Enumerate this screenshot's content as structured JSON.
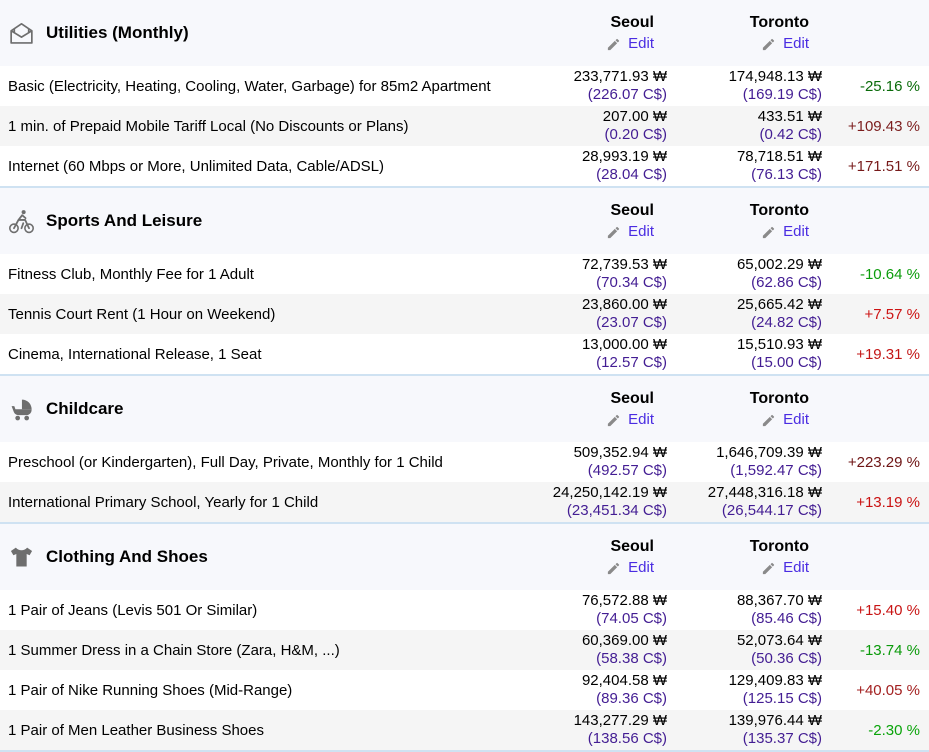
{
  "table": {
    "city1": "Seoul",
    "city2": "Toronto",
    "edit_label": "Edit",
    "edit_icon": "pencil-icon"
  },
  "colors": {
    "edit_link": "#4a2ce2",
    "converted_amount": "#431d93",
    "section_header_bg": "#f7f8fc",
    "row_alt_bg": "#f5f5f5",
    "section_divider": "#cfe2f2",
    "icon_gray": "#6e6e6e"
  },
  "sections": [
    {
      "title": "Utilities (Monthly)",
      "icon": "open-mail-icon",
      "rows": [
        {
          "label": "Basic (Electricity, Heating, Cooling, Water, Garbage) for 85m2 Apartment",
          "city1_value": "233,771.93 ₩",
          "city1_converted": "(226.07 C$)",
          "city2_value": "174,948.13 ₩",
          "city2_converted": "(169.19 C$)",
          "diff": "-25.16 %",
          "diff_color": "#0a6b0a"
        },
        {
          "label": "1 min. of Prepaid Mobile Tariff Local (No Discounts or Plans)",
          "city1_value": "207.00 ₩",
          "city1_converted": "(0.20 C$)",
          "city2_value": "433.51 ₩",
          "city2_converted": "(0.42 C$)",
          "diff": "+109.43 %",
          "diff_color": "#7c1d1d"
        },
        {
          "label": "Internet (60 Mbps or More, Unlimited Data, Cable/ADSL)",
          "city1_value": "28,993.19 ₩",
          "city1_converted": "(28.04 C$)",
          "city2_value": "78,718.51 ₩",
          "city2_converted": "(76.13 C$)",
          "diff": "+171.51 %",
          "diff_color": "#771a1a"
        }
      ]
    },
    {
      "title": "Sports And Leisure",
      "icon": "cyclist-icon",
      "rows": [
        {
          "label": "Fitness Club, Monthly Fee for 1 Adult",
          "city1_value": "72,739.53 ₩",
          "city1_converted": "(70.34 C$)",
          "city2_value": "65,002.29 ₩",
          "city2_converted": "(62.86 C$)",
          "diff": "-10.64 %",
          "diff_color": "#0c9c0c"
        },
        {
          "label": "Tennis Court Rent (1 Hour on Weekend)",
          "city1_value": "23,860.00 ₩",
          "city1_converted": "(23.07 C$)",
          "city2_value": "25,665.42 ₩",
          "city2_converted": "(24.82 C$)",
          "diff": "+7.57 %",
          "diff_color": "#cd1414"
        },
        {
          "label": "Cinema, International Release, 1 Seat",
          "city1_value": "13,000.00 ₩",
          "city1_converted": "(12.57 C$)",
          "city2_value": "15,510.93 ₩",
          "city2_converted": "(15.00 C$)",
          "diff": "+19.31 %",
          "diff_color": "#c31717"
        }
      ]
    },
    {
      "title": "Childcare",
      "icon": "stroller-icon",
      "rows": [
        {
          "label": "Preschool (or Kindergarten), Full Day, Private, Monthly for 1 Child",
          "city1_value": "509,352.94 ₩",
          "city1_converted": "(492.57 C$)",
          "city2_value": "1,646,709.39 ₩",
          "city2_converted": "(1,592.47 C$)",
          "diff": "+223.29 %",
          "diff_color": "#6e1414"
        },
        {
          "label": "International Primary School, Yearly for 1 Child",
          "city1_value": "24,250,142.19 ₩",
          "city1_converted": "(23,451.34 C$)",
          "city2_value": "27,448,316.18 ₩",
          "city2_converted": "(26,544.17 C$)",
          "diff": "+13.19 %",
          "diff_color": "#ca1212"
        }
      ]
    },
    {
      "title": "Clothing And Shoes",
      "icon": "tshirt-icon",
      "rows": [
        {
          "label": "1 Pair of Jeans (Levis 501 Or Similar)",
          "city1_value": "76,572.88 ₩",
          "city1_converted": "(74.05 C$)",
          "city2_value": "88,367.70 ₩",
          "city2_converted": "(85.46 C$)",
          "diff": "+15.40 %",
          "diff_color": "#c81414"
        },
        {
          "label": "1 Summer Dress in a Chain Store (Zara, H&M, ...)",
          "city1_value": "60,369.00 ₩",
          "city1_converted": "(58.38 C$)",
          "city2_value": "52,073.64 ₩",
          "city2_converted": "(50.36 C$)",
          "diff": "-13.74 %",
          "diff_color": "#0a9a0a"
        },
        {
          "label": "1 Pair of Nike Running Shoes (Mid-Range)",
          "city1_value": "92,404.58 ₩",
          "city1_converted": "(89.36 C$)",
          "city2_value": "129,409.83 ₩",
          "city2_converted": "(125.15 C$)",
          "diff": "+40.05 %",
          "diff_color": "#a32020"
        },
        {
          "label": "1 Pair of Men Leather Business Shoes",
          "city1_value": "143,277.29 ₩",
          "city1_converted": "(138.56 C$)",
          "city2_value": "139,976.44 ₩",
          "city2_converted": "(135.37 C$)",
          "diff": "-2.30 %",
          "diff_color": "#0aa40a"
        }
      ]
    }
  ]
}
